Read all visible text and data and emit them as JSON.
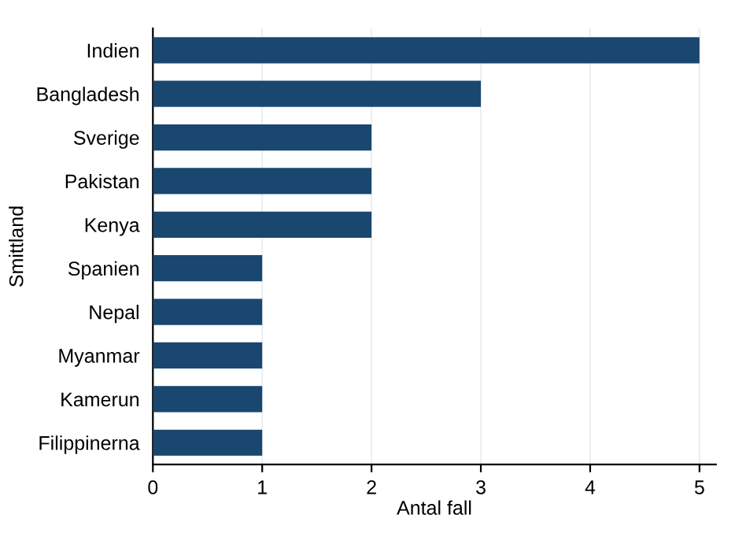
{
  "chart_data": {
    "type": "bar",
    "orientation": "horizontal",
    "xlabel": "Antal fall",
    "ylabel": "Smittland",
    "categories": [
      "Indien",
      "Bangladesh",
      "Sverige",
      "Pakistan",
      "Kenya",
      "Spanien",
      "Nepal",
      "Myanmar",
      "Kamerun",
      "Filippinerna"
    ],
    "values": [
      5,
      3,
      2,
      2,
      2,
      1,
      1,
      1,
      1,
      1
    ],
    "color": "#1a476f",
    "xlim": [
      0,
      5.15
    ],
    "xticks": [
      0,
      1,
      2,
      3,
      4,
      5
    ],
    "grid": "x"
  }
}
